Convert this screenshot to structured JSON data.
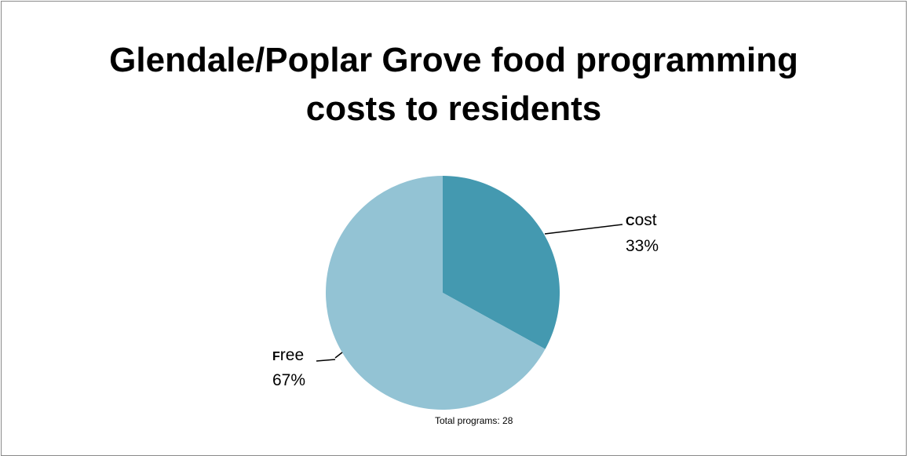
{
  "chart_data": {
    "type": "pie",
    "title_lines": [
      "Glendale/Poplar Grove food programming",
      "costs to residents"
    ],
    "slices": [
      {
        "name": "Cost",
        "value": 33,
        "label_first": "C",
        "label_rest": "ost",
        "percent": "33%",
        "color": "#4499b0"
      },
      {
        "name": "Free",
        "value": 67,
        "label_first": "F",
        "label_rest": "ree",
        "percent": "67%",
        "color": "#93c3d4"
      }
    ],
    "note": "Total programs: 28"
  }
}
